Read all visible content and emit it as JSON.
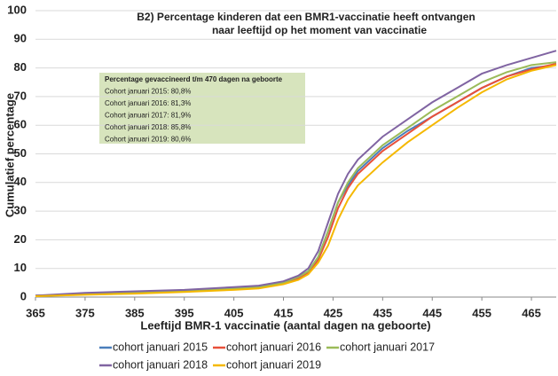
{
  "chart_data": {
    "type": "line",
    "title": [
      "B2) Percentage kinderen dat een BMR1-vaccinatie heeft ontvangen",
      "naar leeftijd op het moment van vaccinatie"
    ],
    "x_label": "Leeftijd BMR-1 vaccinatie (aantal dagen na geboorte)",
    "y_label": "Cumulatief percentage",
    "annotation": [
      "Percentage gevaccineerd t/m 470 dagen na geboorte",
      "Cohort januari 2015: 80,8%",
      "Cohort januari 2016: 81,3%",
      "Cohort januari 2017: 81,9%",
      "Cohort januari 2018: 85,8%",
      "Cohort januari 2019: 80,6%"
    ],
    "x": [
      365,
      375,
      385,
      395,
      405,
      410,
      415,
      418,
      420,
      422,
      424,
      426,
      428,
      430,
      435,
      440,
      445,
      450,
      455,
      460,
      465,
      470
    ],
    "series": [
      {
        "name": "cohort januari 2015",
        "color": "#4a7ebb",
        "values": [
          0.5,
          1,
          1.5,
          2,
          3,
          3.5,
          5,
          7,
          9,
          14,
          23,
          33,
          39,
          44,
          52,
          58,
          63,
          68,
          73,
          77,
          80,
          81
        ]
      },
      {
        "name": "cohort januari 2016",
        "color": "#e8503a",
        "values": [
          0.5,
          1,
          1.5,
          2,
          3,
          3.5,
          5,
          6.5,
          8.5,
          13,
          21,
          31,
          38,
          43,
          51,
          57,
          63,
          68,
          73,
          77,
          79.5,
          81.5
        ]
      },
      {
        "name": "cohort januari 2017",
        "color": "#9bbb59",
        "values": [
          0.5,
          1,
          1.5,
          2,
          3,
          3.5,
          5,
          7,
          9,
          14,
          23,
          33,
          40,
          45,
          53,
          59,
          65,
          70,
          75,
          78.5,
          81,
          82
        ]
      },
      {
        "name": "cohort januari 2018",
        "color": "#8064a2",
        "values": [
          0.5,
          1.5,
          2,
          2.5,
          3.5,
          4,
          5.5,
          7.5,
          10,
          16,
          26,
          36,
          43,
          48,
          56,
          62,
          68,
          73,
          78,
          81,
          83.5,
          86
        ]
      },
      {
        "name": "cohort januari 2019",
        "color": "#f5b800",
        "values": [
          0.3,
          0.8,
          1.2,
          1.8,
          2.5,
          3,
          4.5,
          6,
          8,
          12,
          18,
          27,
          34,
          39,
          47,
          54,
          60,
          66,
          71.5,
          76,
          79,
          81
        ]
      }
    ],
    "xlim": [
      365,
      470
    ],
    "xticks": [
      365,
      375,
      385,
      395,
      405,
      415,
      425,
      435,
      445,
      455,
      465
    ],
    "ylim": [
      0,
      100
    ],
    "yticks": [
      0,
      10,
      20,
      30,
      40,
      50,
      60,
      70,
      80,
      90,
      100
    ],
    "grid": true
  }
}
